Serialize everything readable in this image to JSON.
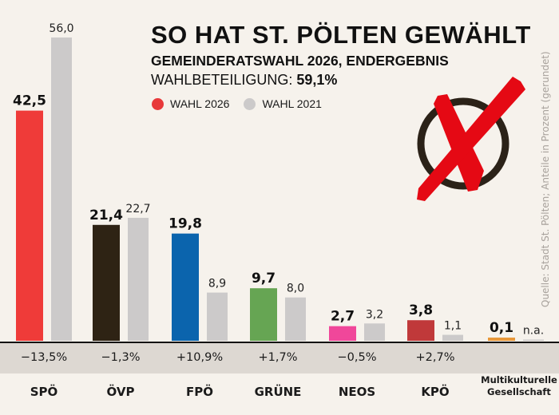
{
  "header": {
    "title": "SO HAT ST. PÖLTEN GEWÄHLT",
    "subtitle": "GEMEINDERATSWAHL 2026, ENDERGEBNIS",
    "turnout_label": "WAHLBETEILIGUNG: ",
    "turnout_value": "59,1%"
  },
  "legend": [
    {
      "label": "WAHL 2026",
      "color": "#e8393a"
    },
    {
      "label": "WAHL 2021",
      "color": "#cccaca"
    }
  ],
  "source": "Quelle: Stadt St. Pölten; Anteile in Prozent (gerundet)",
  "icon": "ballot-cross-icon",
  "chart_data": {
    "type": "bar",
    "title": "SO HAT ST. PÖLTEN GEWÄHLT",
    "subtitle": "GEMEINDERATSWAHL 2026, ENDERGEBNIS",
    "xlabel": "",
    "ylabel": "Anteile in Prozent",
    "ylim": [
      0,
      56
    ],
    "grid": false,
    "legend_position": "top",
    "categories": [
      "SPÖ",
      "ÖVP",
      "FPÖ",
      "GRÜNE",
      "NEOS",
      "KPÖ",
      "Multikulturelle Gesellschaft"
    ],
    "series": [
      {
        "name": "WAHL 2026",
        "values": [
          42.5,
          21.4,
          19.8,
          9.7,
          2.7,
          3.8,
          0.1
        ],
        "labels": [
          "42,5",
          "21,4",
          "19,8",
          "9,7",
          "2,7",
          "3,8",
          "0,1"
        ],
        "colors": [
          "#ef3b39",
          "#2e2314",
          "#0b64ad",
          "#66a553",
          "#f0479a",
          "#c0393a",
          "#e8983a"
        ]
      },
      {
        "name": "WAHL 2021",
        "values": [
          56.0,
          22.7,
          8.9,
          8.0,
          3.2,
          1.1,
          null
        ],
        "labels": [
          "56,0",
          "22,7",
          "8,9",
          "8,0",
          "3,2",
          "1,1",
          "n.a."
        ],
        "color": "#cccaca"
      }
    ],
    "differences": [
      "−13,5%",
      "−1,3%",
      "+10,9%",
      "+1,7%",
      "−0,5%",
      "+2,7%",
      ""
    ],
    "party_labels": [
      "SPÖ",
      "ÖVP",
      "FPÖ",
      "GRÜNE",
      "NEOS",
      "KPÖ",
      "Multikulturelle\nGesellschaft"
    ]
  }
}
